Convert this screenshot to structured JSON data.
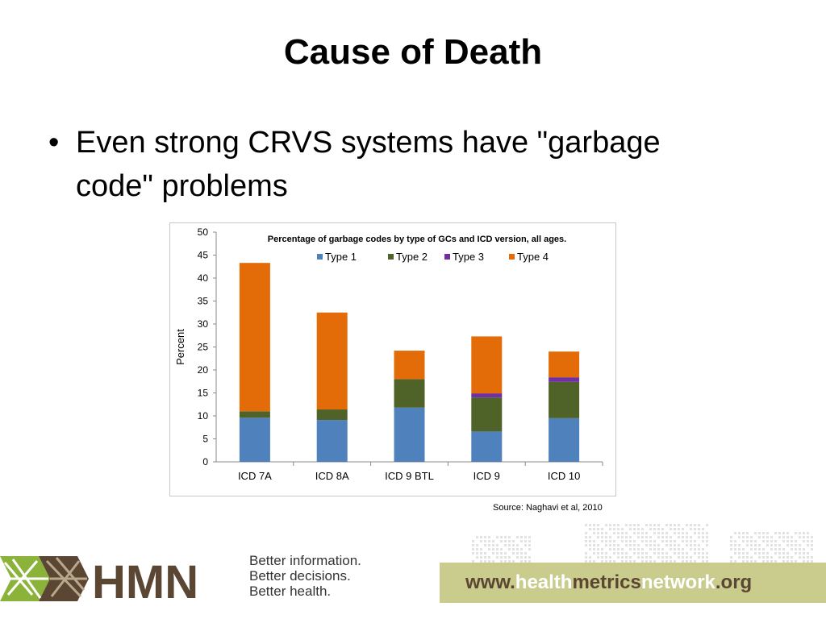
{
  "slide": {
    "title": "Cause of Death",
    "bullet": "Even strong CRVS systems have \"garbage code\" problems",
    "source": "Source: Naghavi et al, 2010"
  },
  "footer": {
    "logo_text": "HMN",
    "tagline": [
      "Better information.",
      "Better decisions.",
      "Better health."
    ],
    "url_parts": [
      "www.",
      "health",
      "metrics",
      "network",
      ".org"
    ],
    "colors": {
      "band": "#c9cc8d",
      "logo_green": "#8bb33a",
      "logo_brown": "#5a4632"
    }
  },
  "chart_data": {
    "type": "bar",
    "stacked": true,
    "title": "Percentage of garbage codes by type of GCs and ICD version, all ages.",
    "ylabel": "Percent",
    "xlabel": "",
    "ylim": [
      0,
      50
    ],
    "yticks": [
      0,
      5,
      10,
      15,
      20,
      25,
      30,
      35,
      40,
      45,
      50
    ],
    "categories": [
      "ICD 7A",
      "ICD 8A",
      "ICD 9 BTL",
      "ICD 9",
      "ICD 10"
    ],
    "series": [
      {
        "name": "Type 1",
        "color": "#4f81bd",
        "values": [
          9.6,
          9.1,
          11.8,
          6.6,
          9.5
        ]
      },
      {
        "name": "Type 2",
        "color": "#4f6228",
        "values": [
          1.4,
          2.3,
          6.2,
          7.4,
          7.9
        ]
      },
      {
        "name": "Type 3",
        "color": "#7030a0",
        "values": [
          0.0,
          0.0,
          0.0,
          0.9,
          1.0
        ]
      },
      {
        "name": "Type 4",
        "color": "#e36c09",
        "values": [
          32.3,
          21.1,
          6.2,
          12.4,
          5.6
        ]
      }
    ],
    "grid": false,
    "legend": "top"
  }
}
